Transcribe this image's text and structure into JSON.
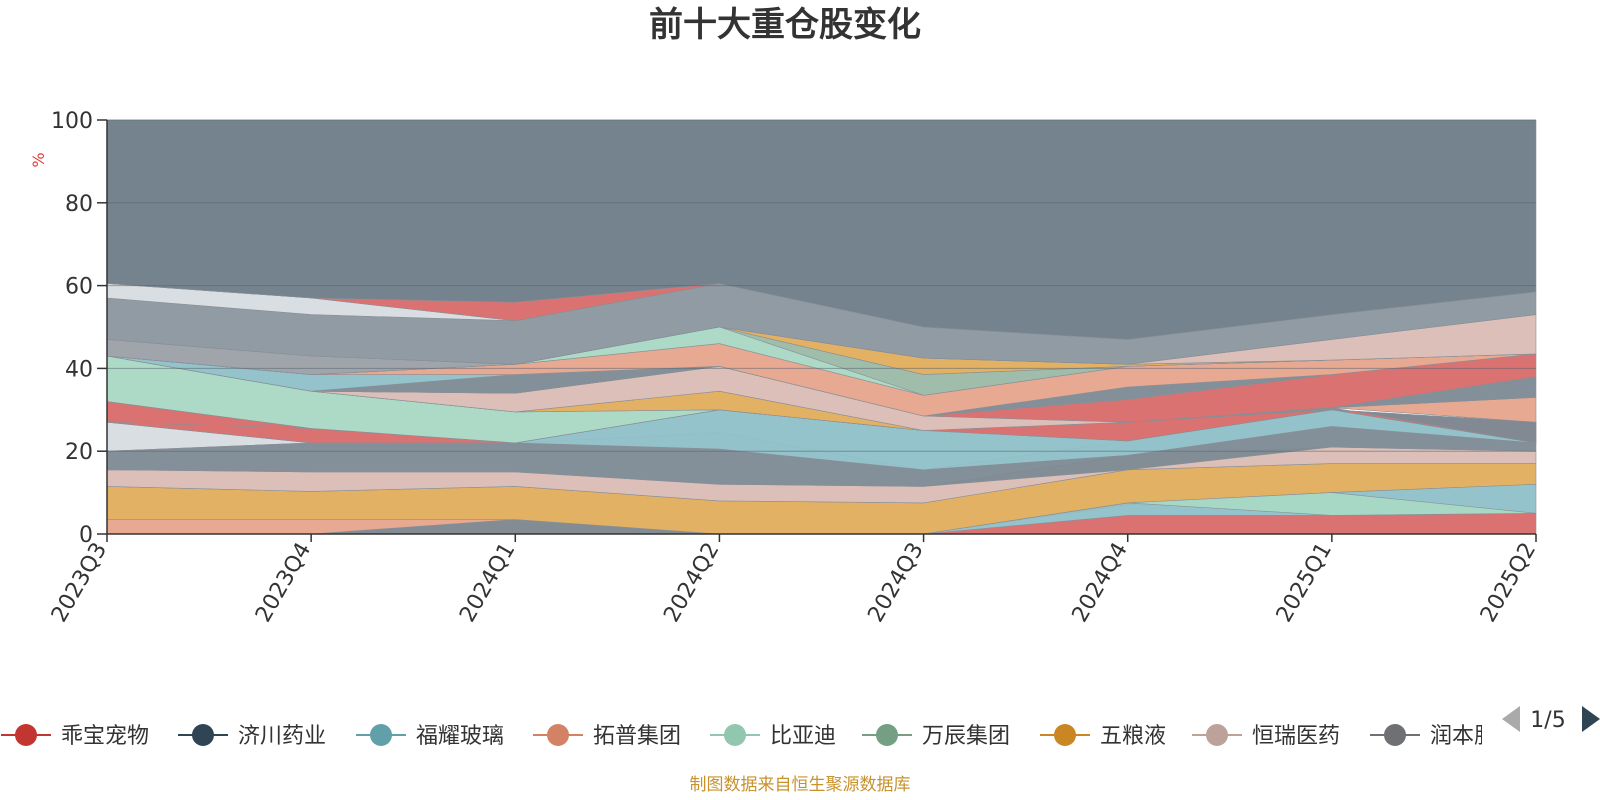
{
  "chart_data": {
    "type": "area",
    "title": "前十大重仓股变化",
    "ylabel": "%",
    "ylim": [
      0,
      100
    ],
    "y_ticks": [
      "0",
      "20",
      "40",
      "60",
      "80",
      "100"
    ],
    "categories": [
      "2023Q3",
      "2023Q4",
      "2024Q1",
      "2024Q2",
      "2024Q3",
      "2024Q4",
      "2025Q1",
      "2025Q2"
    ],
    "bands": [
      {
        "color": "#e6a48c",
        "values": [
          [
            0,
            3.5
          ],
          [
            0,
            3.5
          ],
          [
            0,
            3.5
          ],
          [
            0,
            0
          ],
          [
            0,
            0
          ],
          [
            0,
            0
          ],
          [
            0,
            0
          ],
          [
            0,
            0
          ]
        ]
      },
      {
        "color": "#7d8a94",
        "values": [
          [
            0,
            0
          ],
          [
            0,
            0
          ],
          [
            0,
            3.5
          ],
          [
            0,
            0
          ],
          [
            0,
            0
          ],
          [
            0,
            0
          ],
          [
            0,
            0
          ],
          [
            0,
            0
          ]
        ]
      },
      {
        "color": "#d96a6a",
        "values": [
          [
            0,
            0
          ],
          [
            0,
            0
          ],
          [
            0,
            0
          ],
          [
            0,
            0
          ],
          [
            0,
            0
          ],
          [
            0,
            4.5
          ],
          [
            0,
            4.5
          ],
          [
            0,
            5
          ]
        ]
      },
      {
        "color": "#e0ad5c",
        "values": [
          [
            3.5,
            11.5
          ],
          [
            3.5,
            10.3
          ],
          [
            3.5,
            11.5
          ],
          [
            0,
            8
          ],
          [
            0,
            7.5
          ],
          [
            7,
            15.5
          ],
          [
            10,
            17
          ],
          [
            12,
            17
          ]
        ]
      },
      {
        "color": "#8fc0c8",
        "values": [
          [
            0,
            0
          ],
          [
            0,
            0
          ],
          [
            0,
            0
          ],
          [
            0,
            0
          ],
          [
            0,
            0
          ],
          [
            4.5,
            7.5
          ],
          [
            4.5,
            10
          ],
          [
            5,
            12
          ]
        ]
      },
      {
        "color": "#a8d8c4",
        "values": [
          [
            0,
            0
          ],
          [
            0,
            0
          ],
          [
            0,
            0
          ],
          [
            0,
            0
          ],
          [
            0,
            0
          ],
          [
            7.5,
            7.5
          ],
          [
            4.5,
            10
          ],
          [
            5,
            5
          ]
        ]
      },
      {
        "color": "#d9bcb4",
        "values": [
          [
            11.5,
            15.5
          ],
          [
            10.3,
            15
          ],
          [
            11.5,
            15
          ],
          [
            8,
            12
          ],
          [
            7.5,
            11.5
          ],
          [
            15.5,
            19
          ],
          [
            17,
            21
          ],
          [
            17,
            20
          ]
        ]
      },
      {
        "color": "#7d8a94",
        "values": [
          [
            15.5,
            20
          ],
          [
            15,
            22
          ],
          [
            15,
            22
          ],
          [
            12,
            20.5
          ],
          [
            11.5,
            15.5
          ],
          [
            15.5,
            19
          ],
          [
            21,
            26
          ],
          [
            20,
            22
          ]
        ]
      },
      {
        "color": "#d7dce2",
        "values": [
          [
            20,
            27
          ],
          [
            22,
            22
          ],
          [
            22,
            22
          ],
          [
            20.5,
            24.5
          ],
          [
            15.5,
            15.5
          ],
          [
            19,
            22.5
          ],
          [
            26,
            30
          ],
          [
            22,
            22
          ]
        ]
      },
      {
        "color": "#8fc0c8",
        "values": [
          [
            20,
            20
          ],
          [
            22,
            22
          ],
          [
            22,
            22
          ],
          [
            20.5,
            30
          ],
          [
            15.5,
            25
          ],
          [
            19,
            22.5
          ],
          [
            26,
            30
          ],
          [
            22,
            22
          ]
        ]
      },
      {
        "color": "#d96a6a",
        "values": [
          [
            27,
            32
          ],
          [
            22,
            25.5
          ],
          [
            22,
            22
          ],
          [
            30,
            30
          ],
          [
            25,
            25
          ],
          [
            22.5,
            27
          ],
          [
            30,
            30
          ],
          [
            22,
            27
          ]
        ]
      },
      {
        "color": "#7d8a94",
        "values": [
          [
            27,
            27
          ],
          [
            25.5,
            25.5
          ],
          [
            22,
            22
          ],
          [
            30,
            30
          ],
          [
            25,
            25
          ],
          [
            27,
            27
          ],
          [
            30,
            30.5
          ],
          [
            27,
            22
          ]
        ]
      },
      {
        "color": "#e6a48c",
        "values": [
          [
            32,
            32
          ],
          [
            25.5,
            25.5
          ],
          [
            22,
            22
          ],
          [
            30,
            30
          ],
          [
            25,
            25
          ],
          [
            27,
            27
          ],
          [
            30.5,
            30.5
          ],
          [
            27,
            33
          ]
        ]
      },
      {
        "color": "#7d8a94",
        "values": [
          [
            32,
            32
          ],
          [
            25.5,
            25.5
          ],
          [
            22,
            22
          ],
          [
            30,
            30
          ],
          [
            25,
            25
          ],
          [
            27,
            27
          ],
          [
            30.5,
            30.5
          ],
          [
            33,
            38
          ]
        ]
      },
      {
        "color": "#a8d8c4",
        "values": [
          [
            32,
            43
          ],
          [
            25.5,
            34.5
          ],
          [
            22,
            29.5
          ],
          [
            30,
            30
          ],
          [
            25,
            25
          ],
          [
            27,
            27
          ],
          [
            30.5,
            30.5
          ],
          [
            38,
            38
          ]
        ]
      },
      {
        "color": "#e0ad5c",
        "values": [
          [
            43,
            43
          ],
          [
            34.5,
            34.5
          ],
          [
            29.5,
            29.5
          ],
          [
            30,
            34.5
          ],
          [
            25,
            25
          ],
          [
            27,
            27
          ],
          [
            30.5,
            30.5
          ],
          [
            38,
            38
          ]
        ]
      },
      {
        "color": "#d9bcb4",
        "values": [
          [
            43,
            43
          ],
          [
            34.5,
            34.5
          ],
          [
            29.5,
            34
          ],
          [
            34.5,
            40.5
          ],
          [
            25,
            28.5
          ],
          [
            27,
            27
          ],
          [
            30.5,
            30.5
          ],
          [
            38,
            38
          ]
        ]
      },
      {
        "color": "#d96a6a",
        "values": [
          [
            43,
            43
          ],
          [
            34.5,
            34.5
          ],
          [
            34,
            34
          ],
          [
            40.5,
            40.5
          ],
          [
            28.5,
            28.5
          ],
          [
            27,
            32.5
          ],
          [
            30.5,
            38.5
          ],
          [
            38,
            43.5
          ]
        ]
      },
      {
        "color": "#7d8a94",
        "values": [
          [
            43,
            43
          ],
          [
            34.5,
            34.5
          ],
          [
            34,
            38.5
          ],
          [
            40.5,
            40.5
          ],
          [
            28.5,
            28.5
          ],
          [
            32.5,
            35.5
          ],
          [
            38.5,
            38.5
          ],
          [
            43.5,
            43.5
          ]
        ]
      },
      {
        "color": "#8fc0c8",
        "values": [
          [
            43,
            43
          ],
          [
            34.5,
            38.5
          ],
          [
            38.5,
            38.5
          ],
          [
            40.5,
            40.5
          ],
          [
            28.5,
            28.5
          ],
          [
            35.5,
            35.5
          ],
          [
            38.5,
            38.5
          ],
          [
            43.5,
            43.5
          ]
        ]
      },
      {
        "color": "#e6a48c",
        "values": [
          [
            43,
            43
          ],
          [
            38.5,
            38.5
          ],
          [
            38.5,
            41
          ],
          [
            40.5,
            46
          ],
          [
            28.5,
            33.5
          ],
          [
            35.5,
            40.5
          ],
          [
            38.5,
            42
          ],
          [
            43.5,
            43.5
          ]
        ]
      },
      {
        "color": "#a8d8c4",
        "values": [
          [
            43,
            43
          ],
          [
            38.5,
            38.5
          ],
          [
            41,
            41
          ],
          [
            46,
            50
          ],
          [
            33.5,
            38.5
          ],
          [
            40.5,
            40.5
          ],
          [
            42,
            42
          ],
          [
            43.5,
            43.5
          ]
        ]
      },
      {
        "color": "#9fbcaa",
        "values": [
          [
            43,
            43
          ],
          [
            38.5,
            38.5
          ],
          [
            41,
            41
          ],
          [
            50,
            50
          ],
          [
            33.5,
            38.5
          ],
          [
            40.5,
            40.5
          ],
          [
            42,
            42
          ],
          [
            43.5,
            43.5
          ]
        ]
      },
      {
        "color": "#e0ad5c",
        "values": [
          [
            43,
            43
          ],
          [
            38.5,
            38.5
          ],
          [
            41,
            41
          ],
          [
            50,
            50
          ],
          [
            38.5,
            42.5
          ],
          [
            40.5,
            41
          ],
          [
            42,
            42
          ],
          [
            43.5,
            43.5
          ]
        ]
      },
      {
        "color": "#9aa0a6",
        "values": [
          [
            43,
            47
          ],
          [
            38.5,
            43
          ],
          [
            41,
            41
          ],
          [
            50,
            50
          ],
          [
            42.5,
            42.5
          ],
          [
            41,
            41
          ],
          [
            42,
            42
          ],
          [
            43.5,
            43.5
          ]
        ]
      },
      {
        "color": "#d9bcb4",
        "values": [
          [
            47,
            47
          ],
          [
            43,
            43
          ],
          [
            41,
            41
          ],
          [
            50,
            50
          ],
          [
            42.5,
            42.5
          ],
          [
            41,
            41
          ],
          [
            42,
            47
          ],
          [
            43.5,
            53
          ]
        ]
      },
      {
        "color": "#8a969e",
        "values": [
          [
            47,
            57
          ],
          [
            43,
            53
          ],
          [
            41,
            51.5
          ],
          [
            50,
            60.5
          ],
          [
            42.5,
            50
          ],
          [
            41,
            47
          ],
          [
            47,
            53
          ],
          [
            53,
            58.5
          ]
        ]
      },
      {
        "color": "#d7dce2",
        "values": [
          [
            57,
            60.5
          ],
          [
            53,
            57
          ],
          [
            51.5,
            51.5
          ],
          [
            60.5,
            60.5
          ],
          [
            50,
            50
          ],
          [
            47,
            47
          ],
          [
            53,
            53
          ],
          [
            58.5,
            58.5
          ]
        ]
      },
      {
        "color": "#d96a6a",
        "values": [
          [
            60.5,
            60.5
          ],
          [
            57,
            57
          ],
          [
            51.5,
            56
          ],
          [
            60.5,
            60.5
          ],
          [
            50,
            50
          ],
          [
            47,
            47
          ],
          [
            53,
            53
          ],
          [
            58.5,
            58.5
          ]
        ]
      },
      {
        "color": "#6e7c88",
        "values": [
          [
            60.5,
            100
          ],
          [
            57,
            100
          ],
          [
            56,
            100
          ],
          [
            60.5,
            100
          ],
          [
            50,
            100
          ],
          [
            47,
            100
          ],
          [
            53,
            100
          ],
          [
            58.5,
            100
          ]
        ]
      }
    ]
  },
  "legend": {
    "items": [
      {
        "label": "乖宝宠物",
        "color": "#c23531"
      },
      {
        "label": "济川药业",
        "color": "#2f4554"
      },
      {
        "label": "福耀玻璃",
        "color": "#61a0a8"
      },
      {
        "label": "拓普集团",
        "color": "#d48265"
      },
      {
        "label": "比亚迪",
        "color": "#91c7ae"
      },
      {
        "label": "万辰集团",
        "color": "#749f83"
      },
      {
        "label": "五粮液",
        "color": "#ca8622"
      },
      {
        "label": "恒瑞医药",
        "color": "#bda29a"
      },
      {
        "label": "润本股份",
        "color": "#6e7074"
      }
    ],
    "page": "1/5"
  },
  "source_note": "制图数据来自恒生聚源数据库"
}
